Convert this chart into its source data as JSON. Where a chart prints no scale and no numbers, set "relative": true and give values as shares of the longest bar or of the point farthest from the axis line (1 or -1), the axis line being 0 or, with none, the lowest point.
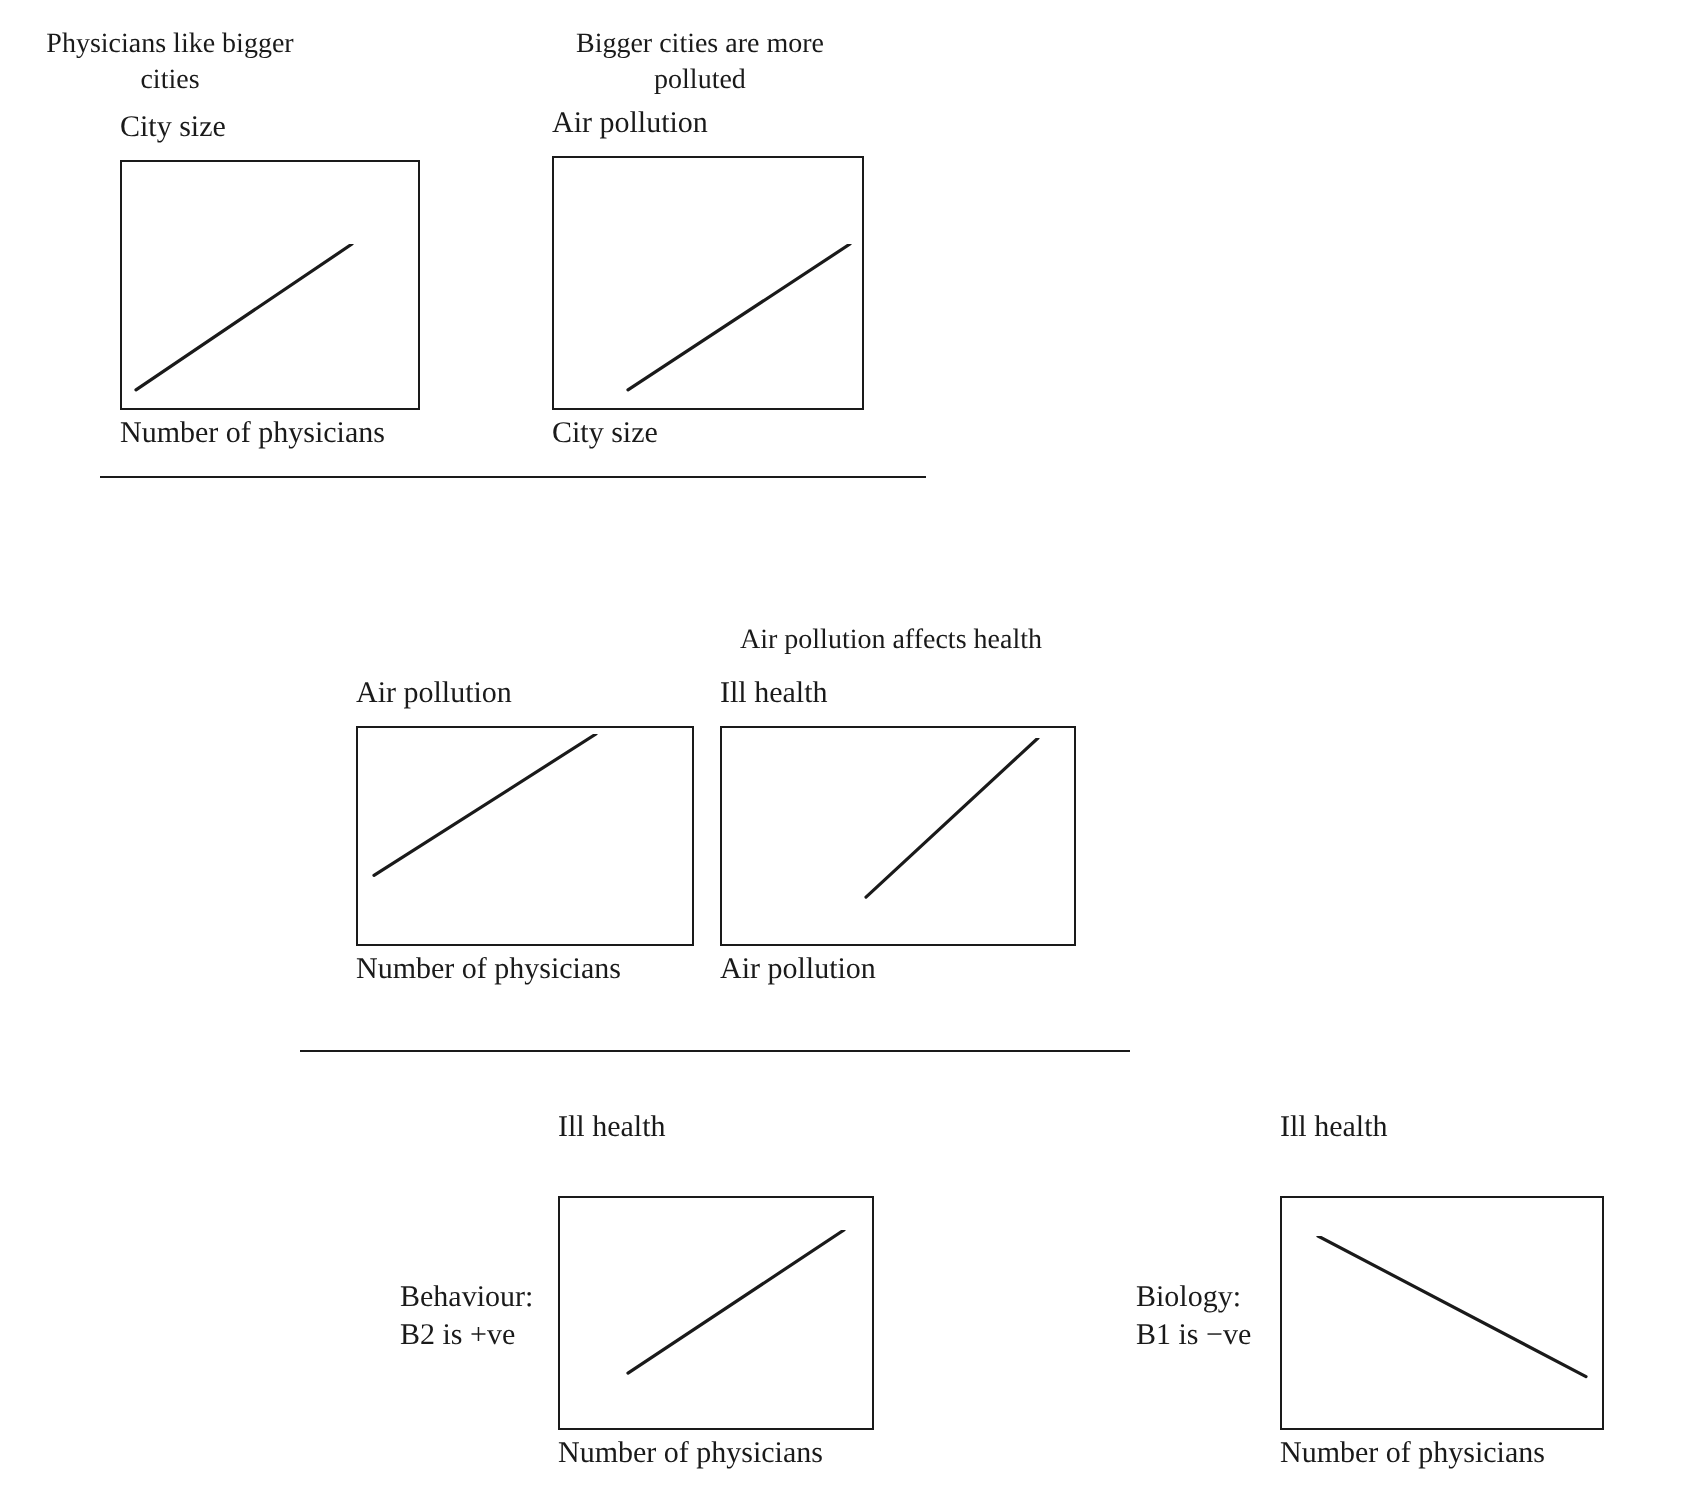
{
  "chart_data": [
    {
      "type": "line",
      "relative": true,
      "title": "Physicians like bigger cities",
      "ylabel": "City size",
      "xlabel": "Number of physicians",
      "categories": [
        null,
        null
      ],
      "series": [
        {
          "color": "#1a1a1a",
          "values": [
            0.1,
            1
          ]
        }
      ]
    },
    {
      "type": "line",
      "relative": true,
      "title": "Bigger cities are more polluted",
      "ylabel": "Air pollution",
      "xlabel": "City size",
      "categories": [
        null,
        null
      ],
      "series": [
        {
          "color": "#1a1a1a",
          "values": [
            0.1,
            1
          ]
        }
      ]
    },
    {
      "type": "line",
      "relative": true,
      "ylabel": "Air pollution",
      "xlabel": "Number of physicians",
      "categories": [
        null,
        null
      ],
      "series": [
        {
          "color": "#1a1a1a",
          "values": [
            0.32,
            1
          ]
        }
      ]
    },
    {
      "type": "line",
      "relative": true,
      "title": "Air pollution affects health",
      "ylabel": "Ill health",
      "xlabel": "Air pollution",
      "categories": [
        null,
        null
      ],
      "series": [
        {
          "color": "#1a1a1a",
          "values": [
            0.22,
            1
          ]
        }
      ]
    },
    {
      "type": "line",
      "relative": true,
      "ylabel": "Ill health",
      "xlabel": "Number of physicians",
      "annotations": [
        "Behaviour: B2 is +ve"
      ],
      "categories": [
        null,
        null
      ],
      "series": [
        {
          "color": "#1a1a1a",
          "values": [
            0.27,
            1
          ]
        }
      ]
    },
    {
      "type": "line",
      "relative": true,
      "ylabel": "Ill health",
      "xlabel": "Number of physicians",
      "annotations": [
        "Biology: B1 is −ve"
      ],
      "categories": [
        null,
        null
      ],
      "series": [
        {
          "color": "#1a1a1a",
          "values": [
            1,
            0.26
          ]
        }
      ]
    }
  ]
}
